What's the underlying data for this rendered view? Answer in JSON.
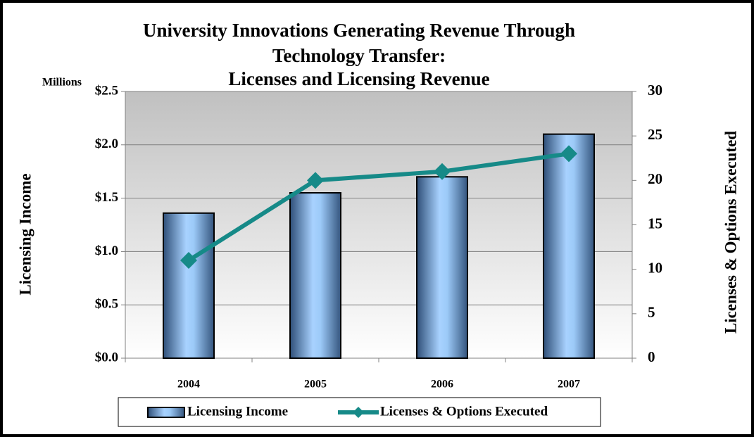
{
  "chart_data": {
    "type": "bar",
    "title_lines": [
      "University Innovations Generating Revenue Through",
      "Technology Transfer:",
      "Licenses and Licensing Revenue"
    ],
    "y_unit_label": "Millions",
    "y_label": "Licensing Income",
    "y2_label": "Licenses & Options Executed",
    "categories": [
      "2004",
      "2005",
      "2006",
      "2007"
    ],
    "series": [
      {
        "name": "Licensing Income",
        "type": "bar",
        "color": "#5d8ec8",
        "values": [
          1.36,
          1.55,
          1.7,
          2.1
        ]
      },
      {
        "name": "Licenses & Options Executed",
        "type": "line",
        "axis": "y2",
        "color": "#168a88",
        "values": [
          11,
          20,
          21,
          23
        ]
      }
    ],
    "ylim": [
      0,
      2.5
    ],
    "yticks": [
      {
        "value": 0,
        "label": "$0.0"
      },
      {
        "value": 0.5,
        "label": "$0.5"
      },
      {
        "value": 1,
        "label": "$1.0"
      },
      {
        "value": 1.5,
        "label": "$1.5"
      },
      {
        "value": 2,
        "label": "$2.0"
      },
      {
        "value": 2.5,
        "label": "$2.5"
      }
    ],
    "y2lim": [
      0,
      30
    ],
    "y2ticks": [
      0,
      5,
      10,
      15,
      20,
      25,
      30
    ],
    "grid": true,
    "legend": "bottom"
  }
}
